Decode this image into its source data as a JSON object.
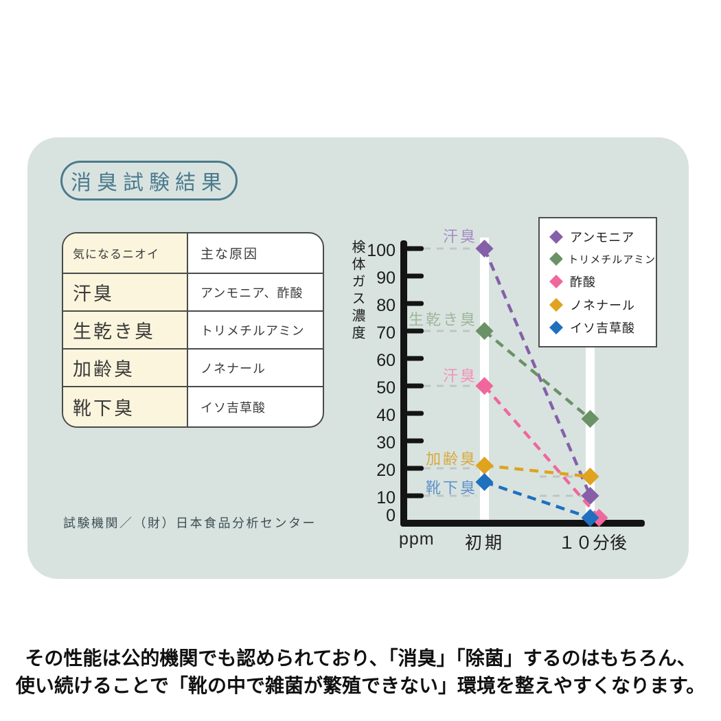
{
  "panel": {
    "title": "消臭試験結果",
    "table": {
      "headers": [
        "気になるニオイ",
        "主な原因"
      ],
      "rows": [
        {
          "odor": "汗臭",
          "cause": "アンモニア、酢酸"
        },
        {
          "odor": "生乾き臭",
          "cause": "トリメチルアミン"
        },
        {
          "odor": "加齢臭",
          "cause": "ノネナール"
        },
        {
          "odor": "靴下臭",
          "cause": "イソ吉草酸"
        }
      ]
    },
    "agency": "試験機関／（財）日本食品分析センター"
  },
  "chart_data": {
    "type": "line",
    "title": "消臭試験結果",
    "ylabel": "検体ガス濃度",
    "y_unit": "ppm",
    "categories": [
      "初期",
      "１０分後"
    ],
    "yticks": [
      0,
      10,
      20,
      30,
      40,
      50,
      60,
      70,
      80,
      90,
      100
    ],
    "ylim": [
      0,
      100
    ],
    "line_style": "dashed",
    "marker": "diamond",
    "legend_position": "top-right",
    "grid": "dashed-horizontal-guides",
    "series": [
      {
        "key": "ammonia",
        "name": "アンモニア",
        "values": [
          100,
          10
        ],
        "color": "#8560a8",
        "annotation": "汗臭",
        "annotation_color": "#a78cc3"
      },
      {
        "key": "trimethylamine",
        "name": "トリメチルアミン",
        "values": [
          70,
          38
        ],
        "color": "#6b9267",
        "annotation": "生乾き臭",
        "annotation_color": "#9fb69b"
      },
      {
        "key": "acetic-acid",
        "name": "酢酸",
        "values": [
          50,
          2
        ],
        "color": "#f0679e",
        "annotation": "汗臭",
        "annotation_color": "#f392b6"
      },
      {
        "key": "nonenal",
        "name": "ノネナール",
        "values": [
          21,
          17
        ],
        "color": "#dfa31f",
        "annotation": "加齢臭",
        "annotation_color": "#d9a93e"
      },
      {
        "key": "isovaleric-acid",
        "name": "イソ吉草酸",
        "values": [
          15,
          2
        ],
        "color": "#1f70bf",
        "annotation": "靴下臭",
        "annotation_color": "#6191c9"
      }
    ]
  },
  "footer": {
    "line1": "その性能は公的機関でも認められており、「消臭」「除菌」するのはもちろん、",
    "line2": "使い続けることで「靴の中で雑菌が繁殖できない」環境を整えやすくなります。"
  },
  "colors": {
    "panel_bg": "#d8e3e0",
    "title_teal": "#4b7a8c",
    "table_left_bg": "#faf5dc",
    "axis_black": "#141414",
    "guide_gray": "#bcc6c3",
    "band_white": "#ffffff"
  }
}
